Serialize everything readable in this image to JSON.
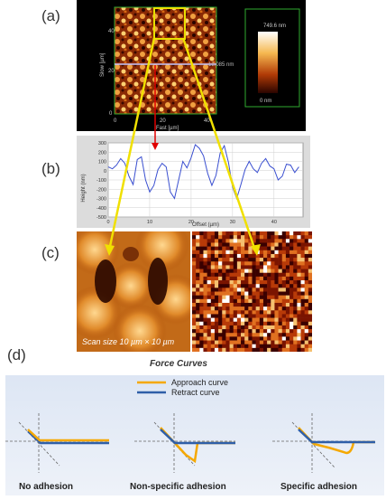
{
  "panels": {
    "a": {
      "letter": "(a)"
    },
    "b": {
      "letter": "(b)"
    },
    "c": {
      "letter": "(c)"
    },
    "d": {
      "letter": "(d)"
    }
  },
  "afm_map": {
    "y_axis_label": "Slow [µm]",
    "x_axis_label": "Fast [µm]",
    "y_ticks": [
      "40",
      "20",
      "0"
    ],
    "x_ticks": [
      "0",
      "20",
      "40"
    ],
    "scale_max": "749.6 nm",
    "scale_min": "0 nm",
    "line_label": "12.085 nm",
    "colors": {
      "dark": "#2a0600",
      "mid": "#c8500a",
      "bright": "#ffe28a",
      "box": "#e8e000",
      "frame": "#33cc33"
    }
  },
  "profile": {
    "ylabel": "Height (nm)",
    "xlabel": "Offset (µm)",
    "y_ticks": [
      "300",
      "200",
      "100",
      "0",
      "-100",
      "-200",
      "-300",
      "-400",
      "-500"
    ],
    "x_ticks": [
      "0",
      "10",
      "20",
      "30",
      "40"
    ],
    "line_color": "#3a4fd0",
    "marker_color": "#e00000"
  },
  "zoom_panel": {
    "caption": "Scan size 10 µm × 10 µm",
    "colors": {
      "bright": "#f7c070",
      "mid": "#d07a1a",
      "dark": "#2a0800"
    }
  },
  "adhesion_map": {
    "colors": [
      "#3a0000",
      "#7a1400",
      "#b83a08",
      "#e07020",
      "#f5c070",
      "#ffffff"
    ]
  },
  "force_curves": {
    "title": "Force Curves",
    "legend": [
      {
        "label": "Approach curve",
        "color": "#f5a800"
      },
      {
        "label": "Retract curve",
        "color": "#2f5fa8"
      }
    ],
    "cases": [
      {
        "label": "No adhesion"
      },
      {
        "label": "Non-specific adhesion"
      },
      {
        "label": "Specific adhesion"
      }
    ]
  },
  "chart_data": {
    "type": "line",
    "title": "",
    "xlabel": "Offset (µm)",
    "ylabel": "Height (nm)",
    "xlim": [
      0,
      47
    ],
    "ylim": [
      -500,
      300
    ],
    "x": [
      0,
      1,
      2,
      3,
      4,
      5,
      6,
      7,
      8,
      9,
      10,
      11,
      12,
      13,
      14,
      15,
      16,
      17,
      18,
      19,
      20,
      21,
      22,
      23,
      24,
      25,
      26,
      27,
      28,
      29,
      30,
      31,
      32,
      33,
      34,
      35,
      36,
      37,
      38,
      39,
      40,
      41,
      42,
      43,
      44,
      45,
      46
    ],
    "values": [
      40,
      20,
      60,
      130,
      80,
      -60,
      -150,
      120,
      150,
      -100,
      -230,
      -160,
      10,
      80,
      40,
      -230,
      -300,
      -100,
      100,
      30,
      140,
      280,
      240,
      160,
      -30,
      -160,
      -50,
      190,
      270,
      90,
      -180,
      -300,
      -150,
      10,
      100,
      20,
      -20,
      80,
      130,
      50,
      20,
      -100,
      -60,
      70,
      60,
      -20,
      40
    ]
  }
}
